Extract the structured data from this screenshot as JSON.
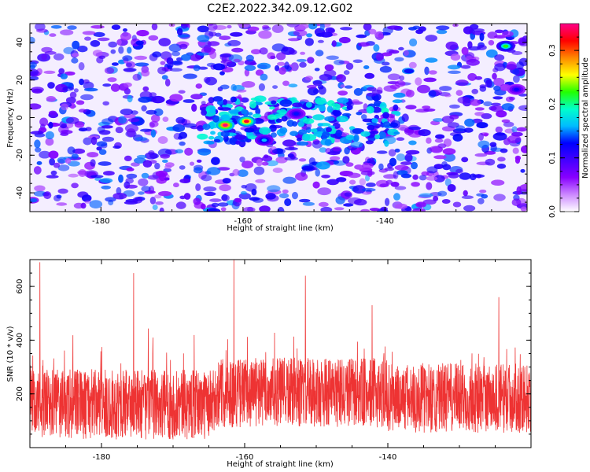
{
  "figure": {
    "title": "C2E2.2022.342.09.12.G02"
  },
  "chart_data": [
    {
      "type": "heatmap",
      "title": "C2E2.2022.342.09.12.G02",
      "xlabel": "Height of straight line (km)",
      "ylabel": "Frequency (Hz)",
      "xlim": [
        -190,
        -120
      ],
      "ylim": [
        -50,
        50
      ],
      "x_ticks": [
        -180,
        -160,
        -140
      ],
      "y_ticks": [
        -40,
        -20,
        0,
        20,
        40
      ],
      "grid": false,
      "colorbar": {
        "label": "Normalized spectral amplitude",
        "range": [
          0,
          0.35
        ],
        "ticks": [
          0.0,
          0.1,
          0.2,
          0.3
        ],
        "colormap": [
          "#ffffff",
          "#cc88ff",
          "#8800ff",
          "#4400ff",
          "#0000ff",
          "#00bbff",
          "#00ffcc",
          "#22ff00",
          "#ffff00",
          "#ff8800",
          "#ff0000",
          "#ff0088"
        ]
      },
      "hotspots": [
        {
          "x": -162.5,
          "y": -4,
          "value": 0.35,
          "label": "peak"
        },
        {
          "x": -159.5,
          "y": -2,
          "value": 0.33
        },
        {
          "x": -157,
          "y": -12,
          "value": 0.16
        },
        {
          "x": -152.5,
          "y": 2,
          "value": 0.13
        },
        {
          "x": -123,
          "y": 38,
          "value": 0.22
        },
        {
          "x": -121.5,
          "y": 15,
          "value": 0.12
        }
      ]
    },
    {
      "type": "line",
      "xlabel": "Height of straight line (km)",
      "ylabel": "SNR (10 * v/v)",
      "xlim": [
        -190,
        -120
      ],
      "ylim": [
        0,
        700
      ],
      "x_ticks": [
        -180,
        -160,
        -140
      ],
      "y_ticks": [
        200,
        400,
        600
      ],
      "grid": false,
      "series_color": "#ee3333",
      "peaks": [
        {
          "x": -188.6,
          "y": 690
        },
        {
          "x": -175.5,
          "y": 650
        },
        {
          "x": -161.5,
          "y": 700
        },
        {
          "x": -151.5,
          "y": 640
        },
        {
          "x": -142.2,
          "y": 530
        },
        {
          "x": -124.5,
          "y": 560
        }
      ]
    }
  ]
}
